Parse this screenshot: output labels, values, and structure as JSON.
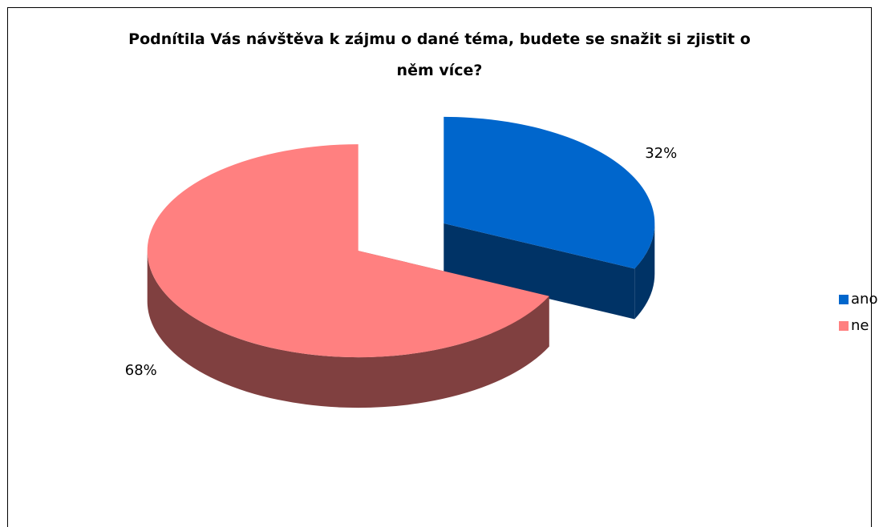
{
  "chart_data": {
    "type": "pie",
    "three_d": true,
    "exploded": true,
    "title": "Podnítila Vás návštěva k zájmu o dané téma, budete se snažit si zjistit o něm více?",
    "categories": [
      "ano",
      "ne"
    ],
    "values": [
      32,
      68
    ],
    "value_labels": [
      "32%",
      "68%"
    ],
    "colors": [
      "#0066cc",
      "#ff8080"
    ],
    "side_colors": [
      "#003366",
      "#804040"
    ],
    "legend": "right"
  }
}
